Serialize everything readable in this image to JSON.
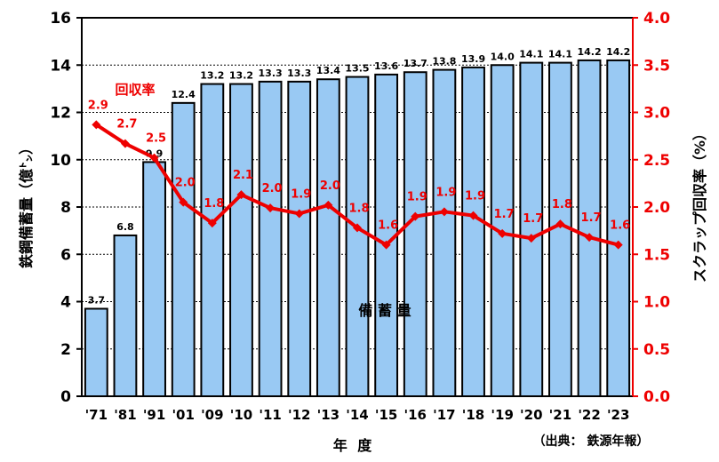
{
  "chart_data": {
    "type": "bar",
    "categories": [
      "'71",
      "'81",
      "'91",
      "'01",
      "'09",
      "'10",
      "'11",
      "'12",
      "'13",
      "'14",
      "'15",
      "'16",
      "'17",
      "'18",
      "'19",
      "'20",
      "'21",
      "'22",
      "'23"
    ],
    "series": [
      {
        "name": "備 蓄 量",
        "type": "bar",
        "axis": "left",
        "values": [
          3.7,
          6.8,
          9.9,
          12.4,
          13.2,
          13.2,
          13.3,
          13.3,
          13.4,
          13.5,
          13.6,
          13.7,
          13.8,
          13.9,
          14.0,
          14.1,
          14.1,
          14.2,
          14.2
        ],
        "labels": [
          "3.7",
          "6.8",
          "9.9",
          "12.4",
          "13.2",
          "13.2",
          "13.3",
          "13.3",
          "13.4",
          "13.5",
          "13.6",
          "13.7",
          "13.8",
          "13.9",
          "14.0",
          "14.1",
          "14.1",
          "14.2",
          "14.2"
        ]
      },
      {
        "name": "回収率",
        "type": "line",
        "axis": "right",
        "values": [
          2.87,
          2.67,
          2.52,
          2.05,
          1.83,
          2.13,
          1.99,
          1.93,
          2.02,
          1.78,
          1.6,
          1.9,
          1.95,
          1.91,
          1.72,
          1.67,
          1.82,
          1.68,
          1.6
        ],
        "labels": [
          "2.9",
          "2.7",
          "2.5",
          "2.0",
          "1.8",
          "2.1",
          "2.0",
          "1.9",
          "2.0",
          "1.8",
          "1.6",
          "1.9",
          "1.9",
          "1.9",
          "1.7",
          "1.7",
          "1.8",
          "1.7",
          "1.6"
        ]
      }
    ],
    "xlabel": "年 度",
    "ylabel": "鉄鋼備蓄量（億㌧）",
    "y2label": "スクラップ回収率（%）",
    "ylim": [
      0,
      16
    ],
    "y2lim": [
      0.0,
      4.0
    ],
    "yticks": [
      "0",
      "2",
      "4",
      "6",
      "8",
      "10",
      "12",
      "14",
      "16"
    ],
    "y2ticks": [
      "0.0",
      "0.5",
      "1.0",
      "1.5",
      "2.0",
      "2.5",
      "3.0",
      "3.5",
      "4.0"
    ],
    "gridlines": "horizontal-dashed",
    "source_note": "（出典： 鉄源年報）",
    "colors": {
      "bar_fill": "#99c9f3",
      "bar_stroke": "#000000",
      "line": "#ee0000",
      "left_axis": "#000000",
      "right_axis": "#ee0000"
    }
  }
}
